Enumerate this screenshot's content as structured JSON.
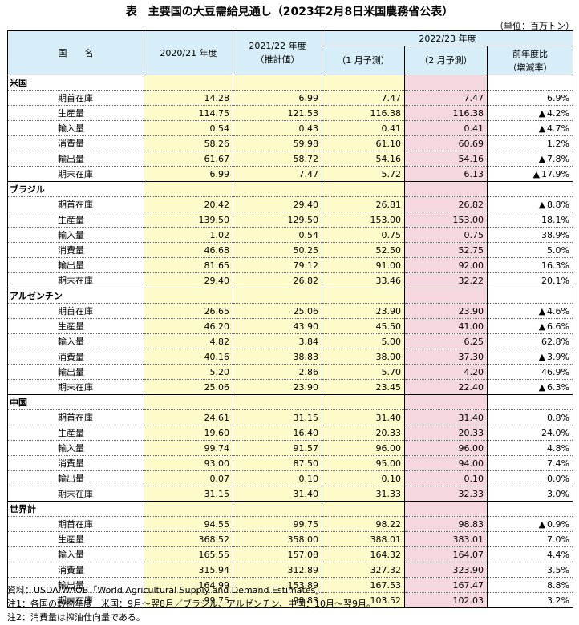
{
  "title": "表　主要国の大豆需給見通し（2023年2月8日米国農務省公表）",
  "unit": "（単位：百万トン）",
  "header": {
    "country": "国　　名",
    "y2020": "2020/21 年度",
    "y2021_1": "2021/22 年度",
    "y2021_2": "（推計値）",
    "y2022": "2022/23 年度",
    "jan": "（1 月予測）",
    "feb": "（2 月予測）",
    "chg_1": "前年度比",
    "chg_2": "（増減率）"
  },
  "triangle": "▲",
  "groups": [
    {
      "name": "米国",
      "rows": [
        {
          "item": "期首在庫",
          "y2020": "14.28",
          "y2021": "6.99",
          "jan": "7.47",
          "feb": "7.47",
          "neg": false,
          "chg": "6.9%"
        },
        {
          "item": "生産量",
          "y2020": "114.75",
          "y2021": "121.53",
          "jan": "116.38",
          "feb": "116.38",
          "neg": true,
          "chg": "4.2%"
        },
        {
          "item": "輸入量",
          "y2020": "0.54",
          "y2021": "0.43",
          "jan": "0.41",
          "feb": "0.41",
          "neg": true,
          "chg": "4.7%"
        },
        {
          "item": "消費量",
          "y2020": "58.26",
          "y2021": "59.98",
          "jan": "61.10",
          "feb": "60.69",
          "neg": false,
          "chg": "1.2%"
        },
        {
          "item": "輸出量",
          "y2020": "61.67",
          "y2021": "58.72",
          "jan": "54.16",
          "feb": "54.16",
          "neg": true,
          "chg": "7.8%"
        },
        {
          "item": "期末在庫",
          "y2020": "6.99",
          "y2021": "7.47",
          "jan": "5.72",
          "feb": "6.13",
          "neg": true,
          "chg": "17.9%"
        }
      ]
    },
    {
      "name": "ブラジル",
      "rows": [
        {
          "item": "期首在庫",
          "y2020": "20.42",
          "y2021": "29.40",
          "jan": "26.81",
          "feb": "26.82",
          "neg": true,
          "chg": "8.8%"
        },
        {
          "item": "生産量",
          "y2020": "139.50",
          "y2021": "129.50",
          "jan": "153.00",
          "feb": "153.00",
          "neg": false,
          "chg": "18.1%"
        },
        {
          "item": "輸入量",
          "y2020": "1.02",
          "y2021": "0.54",
          "jan": "0.75",
          "feb": "0.75",
          "neg": false,
          "chg": "38.9%"
        },
        {
          "item": "消費量",
          "y2020": "46.68",
          "y2021": "50.25",
          "jan": "52.50",
          "feb": "52.75",
          "neg": false,
          "chg": "5.0%"
        },
        {
          "item": "輸出量",
          "y2020": "81.65",
          "y2021": "79.12",
          "jan": "91.00",
          "feb": "92.00",
          "neg": false,
          "chg": "16.3%"
        },
        {
          "item": "期末在庫",
          "y2020": "29.40",
          "y2021": "26.82",
          "jan": "33.46",
          "feb": "32.22",
          "neg": false,
          "chg": "20.1%"
        }
      ]
    },
    {
      "name": "アルゼンチン",
      "rows": [
        {
          "item": "期首在庫",
          "y2020": "26.65",
          "y2021": "25.06",
          "jan": "23.90",
          "feb": "23.90",
          "neg": true,
          "chg": "4.6%"
        },
        {
          "item": "生産量",
          "y2020": "46.20",
          "y2021": "43.90",
          "jan": "45.50",
          "feb": "41.00",
          "neg": true,
          "chg": "6.6%"
        },
        {
          "item": "輸入量",
          "y2020": "4.82",
          "y2021": "3.84",
          "jan": "5.00",
          "feb": "6.25",
          "neg": false,
          "chg": "62.8%"
        },
        {
          "item": "消費量",
          "y2020": "40.16",
          "y2021": "38.83",
          "jan": "38.00",
          "feb": "37.30",
          "neg": true,
          "chg": "3.9%"
        },
        {
          "item": "輸出量",
          "y2020": "5.20",
          "y2021": "2.86",
          "jan": "5.70",
          "feb": "4.20",
          "neg": false,
          "chg": "46.9%"
        },
        {
          "item": "期末在庫",
          "y2020": "25.06",
          "y2021": "23.90",
          "jan": "23.45",
          "feb": "22.40",
          "neg": true,
          "chg": "6.3%"
        }
      ]
    },
    {
      "name": "中国",
      "rows": [
        {
          "item": "期首在庫",
          "y2020": "24.61",
          "y2021": "31.15",
          "jan": "31.40",
          "feb": "31.40",
          "neg": false,
          "chg": "0.8%"
        },
        {
          "item": "生産量",
          "y2020": "19.60",
          "y2021": "16.40",
          "jan": "20.33",
          "feb": "20.33",
          "neg": false,
          "chg": "24.0%"
        },
        {
          "item": "輸入量",
          "y2020": "99.74",
          "y2021": "91.57",
          "jan": "96.00",
          "feb": "96.00",
          "neg": false,
          "chg": "4.8%"
        },
        {
          "item": "消費量",
          "y2020": "93.00",
          "y2021": "87.50",
          "jan": "95.00",
          "feb": "94.00",
          "neg": false,
          "chg": "7.4%"
        },
        {
          "item": "輸出量",
          "y2020": "0.07",
          "y2021": "0.10",
          "jan": "0.10",
          "feb": "0.10",
          "neg": false,
          "chg": "0.0%"
        },
        {
          "item": "期末在庫",
          "y2020": "31.15",
          "y2021": "31.40",
          "jan": "31.33",
          "feb": "32.33",
          "neg": false,
          "chg": "3.0%"
        }
      ]
    },
    {
      "name": "世界計",
      "rows": [
        {
          "item": "期首在庫",
          "y2020": "94.55",
          "y2021": "99.75",
          "jan": "98.22",
          "feb": "98.83",
          "neg": true,
          "chg": "0.9%"
        },
        {
          "item": "生産量",
          "y2020": "368.52",
          "y2021": "358.00",
          "jan": "388.01",
          "feb": "383.01",
          "neg": false,
          "chg": "7.0%"
        },
        {
          "item": "輸入量",
          "y2020": "165.55",
          "y2021": "157.08",
          "jan": "164.32",
          "feb": "164.07",
          "neg": false,
          "chg": "4.4%"
        },
        {
          "item": "消費量",
          "y2020": "315.94",
          "y2021": "312.89",
          "jan": "327.32",
          "feb": "323.90",
          "neg": false,
          "chg": "3.5%"
        },
        {
          "item": "輸出量",
          "y2020": "164.99",
          "y2021": "153.89",
          "jan": "167.53",
          "feb": "167.47",
          "neg": false,
          "chg": "8.8%"
        },
        {
          "item": "期末在庫",
          "y2020": "99.75",
          "y2021": "98.83",
          "jan": "103.52",
          "feb": "102.03",
          "neg": false,
          "chg": "3.2%"
        }
      ]
    }
  ],
  "notes": [
    "資料：USDA/WAOB「World Agricultural Supply and Demand Estimates」",
    "注1：各国の穀物年度　米国：9月～翌8月／ブラジル、アルゼンチン、中国：10月～翌9月。",
    "注2：消費量は搾油仕向量である。"
  ]
}
